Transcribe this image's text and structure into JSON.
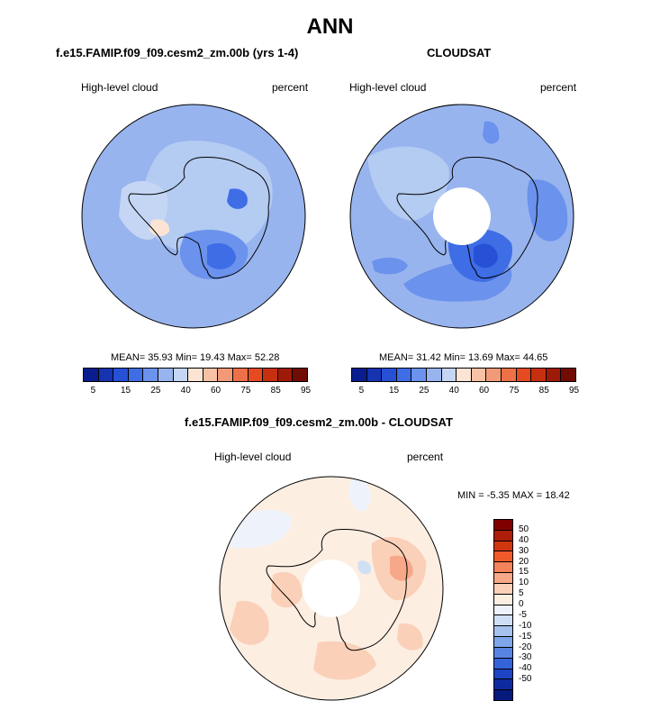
{
  "title": "ANN",
  "panels": [
    {
      "id": "model",
      "title": "f.e15.FAMIP.f09_f09.cesm2_zm.00b (yrs 1-4)",
      "left_label": "High-level cloud",
      "right_label": "percent",
      "stats": "MEAN= 35.93  Min= 19.43  Max= 52.28"
    },
    {
      "id": "obs",
      "title": "CLOUDSAT",
      "left_label": "High-level cloud",
      "right_label": "percent",
      "stats": "MEAN= 31.42  Min= 13.69  Max= 44.65"
    },
    {
      "id": "diff",
      "title": "f.e15.FAMIP.f09_f09.cesm2_zm.00b - CLOUDSAT",
      "left_label": "High-level cloud",
      "right_label": "percent",
      "stats": "MIN =  -5.35 MAX =  18.42"
    }
  ],
  "colorbar_main": {
    "colors": [
      "#0a1d8f",
      "#1633b0",
      "#2650d6",
      "#3f6de6",
      "#6b92ec",
      "#98b4ef",
      "#c4d6f4",
      "#fbe4d3",
      "#f6c1a5",
      "#f29a77",
      "#ee7048",
      "#e54a20",
      "#c7300f",
      "#9e1a08",
      "#700c04"
    ],
    "tick_labels": [
      "5",
      "15",
      "25",
      "40",
      "60",
      "75",
      "85",
      "95"
    ]
  },
  "colorbar_diff": {
    "colors": [
      "#800000",
      "#ae1c0a",
      "#d2360f",
      "#f05a2a",
      "#f4825a",
      "#f7a888",
      "#fad0b8",
      "#fdeee2",
      "#eef3fb",
      "#cfe0f5",
      "#a5c2ef",
      "#7ea6ea",
      "#5884e3",
      "#3563da",
      "#1d44c4",
      "#0f2aa0",
      "#061a7d"
    ],
    "tick_labels": [
      "50",
      "40",
      "30",
      "20",
      "15",
      "10",
      "5",
      "0",
      "-5",
      "-10",
      "-15",
      "-20",
      "-30",
      "-40",
      "-50"
    ]
  },
  "colors": {
    "land_outline": "#000000",
    "missing": "#ffffff"
  }
}
